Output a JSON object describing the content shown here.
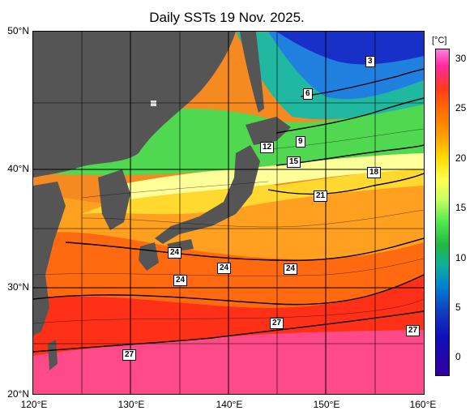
{
  "title": "Daily SSTs 19 Nov. 2025.",
  "latitude_labels": [
    "50°N",
    "40°N",
    "30°N",
    "20°N"
  ],
  "longitude_labels": [
    "120°E",
    "130°E",
    "140°E",
    "150°E",
    "160°E"
  ],
  "colorbar": {
    "unit": "[°C]",
    "ticks": [
      "30",
      "25",
      "20",
      "15",
      "10",
      "5",
      "0"
    ]
  },
  "contour_labels": [
    "3",
    "6",
    "9",
    "12",
    "15",
    "18",
    "21",
    "24",
    "24",
    "24",
    "24",
    "27",
    "27",
    "27"
  ],
  "colors": {
    "land": "#555555",
    "cold": "#1a3fd0",
    "cool": "#20b8a0",
    "mild": "#50d850",
    "warm": "#ffe840",
    "hot": "#ff9a20",
    "very_hot": "#ff3a20",
    "tropical": "#ff40b0"
  }
}
